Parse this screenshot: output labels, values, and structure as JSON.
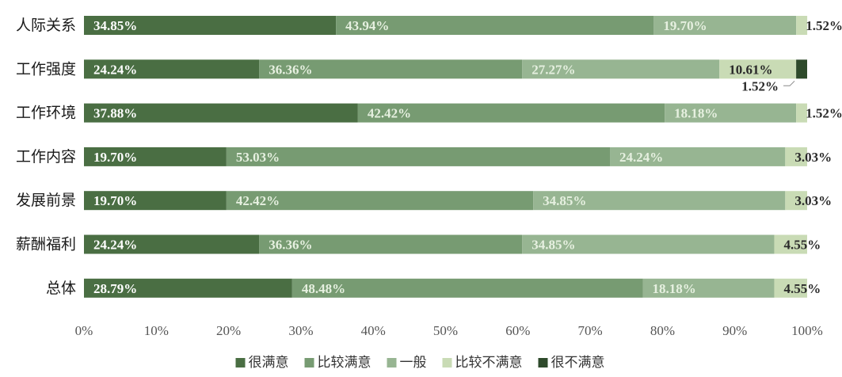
{
  "chart_data": {
    "type": "bar",
    "orientation": "horizontal",
    "stacked": true,
    "title": "",
    "xlabel": "",
    "ylabel": "",
    "xlim": [
      0,
      100
    ],
    "x_ticks": [
      "0%",
      "10%",
      "20%",
      "30%",
      "40%",
      "50%",
      "60%",
      "70%",
      "80%",
      "90%",
      "100%"
    ],
    "categories": [
      "人际关系",
      "工作强度",
      "工作环境",
      "工作内容",
      "发展前景",
      "薪酬福利",
      "总体"
    ],
    "series": [
      {
        "name": "很满意",
        "color": "#4a6e43",
        "label_color": "#ffffff",
        "values": [
          34.85,
          24.24,
          37.88,
          19.7,
          19.7,
          24.24,
          28.79
        ],
        "labels": [
          "34.85%",
          "24.24%",
          "37.88%",
          "19.70%",
          "19.70%",
          "24.24%",
          "28.79%"
        ]
      },
      {
        "name": "比较满意",
        "color": "#779b72",
        "label_color": "#e6f0e0",
        "values": [
          43.94,
          36.36,
          42.42,
          53.03,
          42.42,
          36.36,
          48.48
        ],
        "labels": [
          "43.94%",
          "36.36%",
          "42.42%",
          "53.03%",
          "42.42%",
          "36.36%",
          "48.48%"
        ]
      },
      {
        "name": "一般",
        "color": "#97b592",
        "label_color": "#e6f0e0",
        "values": [
          19.7,
          27.27,
          18.18,
          24.24,
          34.85,
          34.85,
          18.18
        ],
        "labels": [
          "19.70%",
          "27.27%",
          "18.18%",
          "24.24%",
          "34.85%",
          "34.85%",
          "18.18%"
        ]
      },
      {
        "name": "比较不满意",
        "color": "#c9dbb5",
        "label_color": "#2a2a2a",
        "values": [
          1.52,
          10.61,
          1.52,
          3.03,
          3.03,
          4.55,
          4.55
        ],
        "labels": [
          "1.52%",
          "10.61%",
          "1.52%",
          "3.03%",
          "3.03%",
          "4.55%",
          "4.55%"
        ]
      },
      {
        "name": "很不满意",
        "color": "#2e4a2b",
        "label_color": "#2a2a2a",
        "values": [
          0,
          1.52,
          0,
          0,
          0,
          0,
          0
        ],
        "labels": [
          "",
          "1.52%",
          "",
          "",
          "",
          "",
          ""
        ]
      }
    ],
    "grid": false,
    "legend_position": "bottom"
  }
}
